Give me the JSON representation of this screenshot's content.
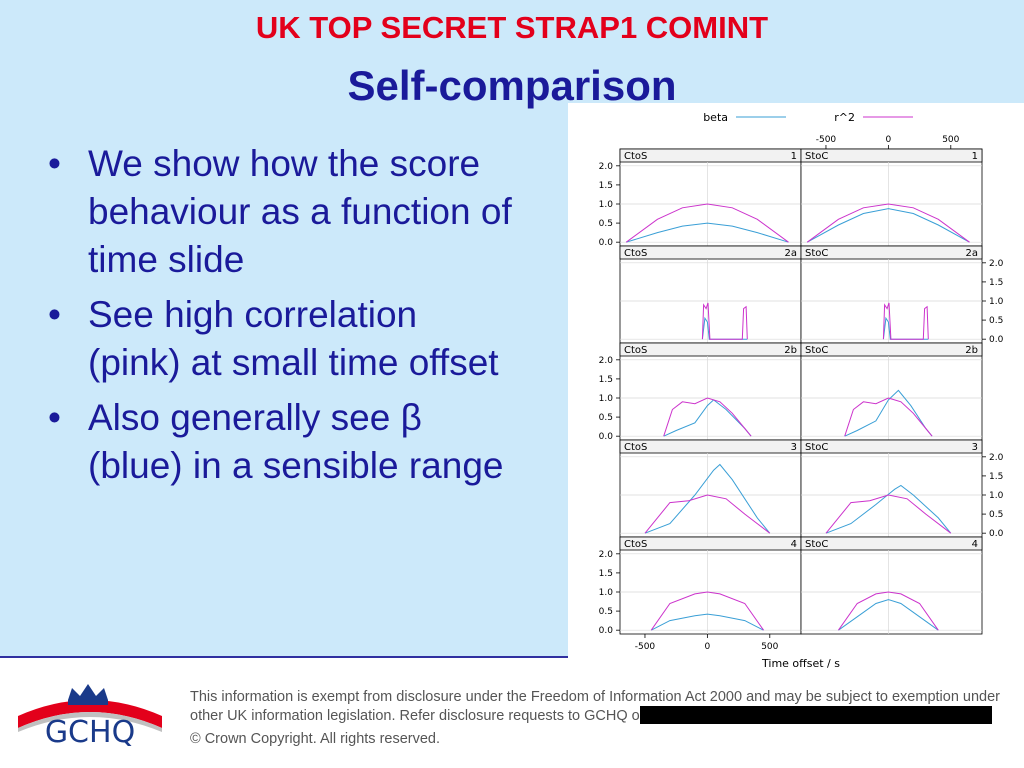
{
  "classification": "UK TOP SECRET STRAP1 COMINT",
  "title": "Self-comparison",
  "bullets": [
    {
      "text": "We show how the score behaviour as a function of time slide"
    },
    {
      "text": "See high correlation (pink) at small time offset"
    },
    {
      "text": "Also generally see β (blue) in a sensible range"
    }
  ],
  "bullet_glyph": "•",
  "footer": {
    "disclaimer_line1": "This information is exempt from disclosure under the Freedom of Information Act 2000 and may be subject to exemption under",
    "disclaimer_line2": "other UK information legislation. Refer disclosure requests to GCHQ on",
    "copyright": "© Crown Copyright. All rights reserved.",
    "logo_text": "GCHQ"
  },
  "colors": {
    "beta": "#3a9fd6",
    "r2": "#cc33cc",
    "classification": "#e3001b",
    "title": "#1a1a9a"
  },
  "chart_data": {
    "type": "line",
    "xlabel": "Time offset / s",
    "xlim": [
      -700,
      750
    ],
    "ylim": [
      -0.1,
      2.1
    ],
    "x_ticks": [
      -500,
      0,
      500
    ],
    "y_ticks": [
      0.0,
      0.5,
      1.0,
      1.5,
      2.0
    ],
    "y_tick_labels": [
      "0.0",
      "0.5",
      "1.0",
      "1.5",
      "2.0"
    ],
    "legend": {
      "position": "top",
      "entries": [
        "beta",
        "r^2"
      ]
    },
    "panels": [
      {
        "label": "CtoS",
        "id": "1",
        "beta": [
          [
            -650,
            0.0
          ],
          [
            -400,
            0.25
          ],
          [
            -200,
            0.42
          ],
          [
            0,
            0.5
          ],
          [
            200,
            0.42
          ],
          [
            400,
            0.25
          ],
          [
            650,
            0.0
          ]
        ],
        "r2": [
          [
            -650,
            0.0
          ],
          [
            -400,
            0.6
          ],
          [
            -200,
            0.9
          ],
          [
            0,
            1.0
          ],
          [
            200,
            0.9
          ],
          [
            400,
            0.6
          ],
          [
            650,
            0.0
          ]
        ]
      },
      {
        "label": "StoC",
        "id": "1",
        "beta": [
          [
            -650,
            0.0
          ],
          [
            -400,
            0.45
          ],
          [
            -200,
            0.75
          ],
          [
            0,
            0.88
          ],
          [
            200,
            0.75
          ],
          [
            400,
            0.45
          ],
          [
            650,
            0.0
          ]
        ],
        "r2": [
          [
            -650,
            0.0
          ],
          [
            -400,
            0.6
          ],
          [
            -200,
            0.9
          ],
          [
            0,
            1.0
          ],
          [
            200,
            0.9
          ],
          [
            400,
            0.6
          ],
          [
            650,
            0.0
          ]
        ]
      },
      {
        "label": "CtoS",
        "id": "2a",
        "beta": [
          [
            -40,
            0.0
          ],
          [
            -20,
            0.55
          ],
          [
            0,
            0.45
          ],
          [
            15,
            0.0
          ],
          [
            40,
            0.0
          ],
          [
            300,
            0.0
          ],
          [
            320,
            0.0
          ]
        ],
        "r2": [
          [
            -40,
            0.0
          ],
          [
            -30,
            0.9
          ],
          [
            -10,
            0.8
          ],
          [
            5,
            0.95
          ],
          [
            20,
            0.0
          ],
          [
            280,
            0.0
          ],
          [
            290,
            0.8
          ],
          [
            310,
            0.85
          ],
          [
            320,
            0.0
          ]
        ]
      },
      {
        "label": "StoC",
        "id": "2a",
        "beta": [
          [
            -40,
            0.0
          ],
          [
            -20,
            0.55
          ],
          [
            0,
            0.45
          ],
          [
            15,
            0.0
          ],
          [
            40,
            0.0
          ],
          [
            300,
            0.0
          ],
          [
            320,
            0.0
          ]
        ],
        "r2": [
          [
            -40,
            0.0
          ],
          [
            -30,
            0.9
          ],
          [
            -10,
            0.8
          ],
          [
            5,
            0.95
          ],
          [
            20,
            0.0
          ],
          [
            280,
            0.0
          ],
          [
            290,
            0.8
          ],
          [
            310,
            0.85
          ],
          [
            320,
            0.0
          ]
        ]
      },
      {
        "label": "CtoS",
        "id": "2b",
        "beta": [
          [
            -350,
            0.0
          ],
          [
            -250,
            0.15
          ],
          [
            -100,
            0.35
          ],
          [
            0,
            0.8
          ],
          [
            50,
            0.95
          ],
          [
            150,
            0.7
          ],
          [
            300,
            0.2
          ],
          [
            350,
            0.0
          ]
        ],
        "r2": [
          [
            -350,
            0.0
          ],
          [
            -280,
            0.7
          ],
          [
            -200,
            0.9
          ],
          [
            -100,
            0.85
          ],
          [
            0,
            1.0
          ],
          [
            100,
            0.9
          ],
          [
            200,
            0.6
          ],
          [
            300,
            0.2
          ],
          [
            350,
            0.0
          ]
        ]
      },
      {
        "label": "StoC",
        "id": "2b",
        "beta": [
          [
            -350,
            0.0
          ],
          [
            -250,
            0.15
          ],
          [
            -100,
            0.4
          ],
          [
            0,
            0.95
          ],
          [
            80,
            1.2
          ],
          [
            180,
            0.8
          ],
          [
            300,
            0.2
          ],
          [
            350,
            0.0
          ]
        ],
        "r2": [
          [
            -350,
            0.0
          ],
          [
            -280,
            0.7
          ],
          [
            -200,
            0.9
          ],
          [
            -100,
            0.85
          ],
          [
            0,
            1.0
          ],
          [
            100,
            0.9
          ],
          [
            200,
            0.6
          ],
          [
            300,
            0.2
          ],
          [
            350,
            0.0
          ]
        ]
      },
      {
        "label": "CtoS",
        "id": "3",
        "beta": [
          [
            -500,
            0.0
          ],
          [
            -300,
            0.25
          ],
          [
            -100,
            1.0
          ],
          [
            50,
            1.65
          ],
          [
            100,
            1.8
          ],
          [
            200,
            1.4
          ],
          [
            400,
            0.4
          ],
          [
            500,
            0.0
          ]
        ],
        "r2": [
          [
            -500,
            0.0
          ],
          [
            -300,
            0.8
          ],
          [
            -150,
            0.85
          ],
          [
            0,
            1.0
          ],
          [
            150,
            0.9
          ],
          [
            300,
            0.5
          ],
          [
            500,
            0.0
          ]
        ]
      },
      {
        "label": "StoC",
        "id": "3",
        "beta": [
          [
            -500,
            0.0
          ],
          [
            -300,
            0.25
          ],
          [
            -100,
            0.75
          ],
          [
            50,
            1.15
          ],
          [
            100,
            1.25
          ],
          [
            200,
            1.0
          ],
          [
            400,
            0.4
          ],
          [
            500,
            0.0
          ]
        ],
        "r2": [
          [
            -500,
            0.0
          ],
          [
            -300,
            0.8
          ],
          [
            -150,
            0.85
          ],
          [
            0,
            1.0
          ],
          [
            150,
            0.9
          ],
          [
            300,
            0.5
          ],
          [
            500,
            0.0
          ]
        ]
      },
      {
        "label": "CtoS",
        "id": "4",
        "beta": [
          [
            -450,
            0.0
          ],
          [
            -300,
            0.25
          ],
          [
            -100,
            0.38
          ],
          [
            0,
            0.42
          ],
          [
            100,
            0.38
          ],
          [
            300,
            0.25
          ],
          [
            450,
            0.0
          ]
        ],
        "r2": [
          [
            -450,
            0.0
          ],
          [
            -300,
            0.7
          ],
          [
            -100,
            0.95
          ],
          [
            0,
            1.0
          ],
          [
            100,
            0.95
          ],
          [
            300,
            0.7
          ],
          [
            450,
            0.0
          ]
        ]
      },
      {
        "label": "StoC",
        "id": "4",
        "beta": [
          [
            -400,
            0.0
          ],
          [
            -250,
            0.35
          ],
          [
            -100,
            0.7
          ],
          [
            0,
            0.8
          ],
          [
            100,
            0.7
          ],
          [
            250,
            0.35
          ],
          [
            400,
            0.0
          ]
        ],
        "r2": [
          [
            -400,
            0.0
          ],
          [
            -250,
            0.7
          ],
          [
            -100,
            0.95
          ],
          [
            0,
            1.0
          ],
          [
            100,
            0.95
          ],
          [
            250,
            0.7
          ],
          [
            400,
            0.0
          ]
        ]
      }
    ]
  }
}
